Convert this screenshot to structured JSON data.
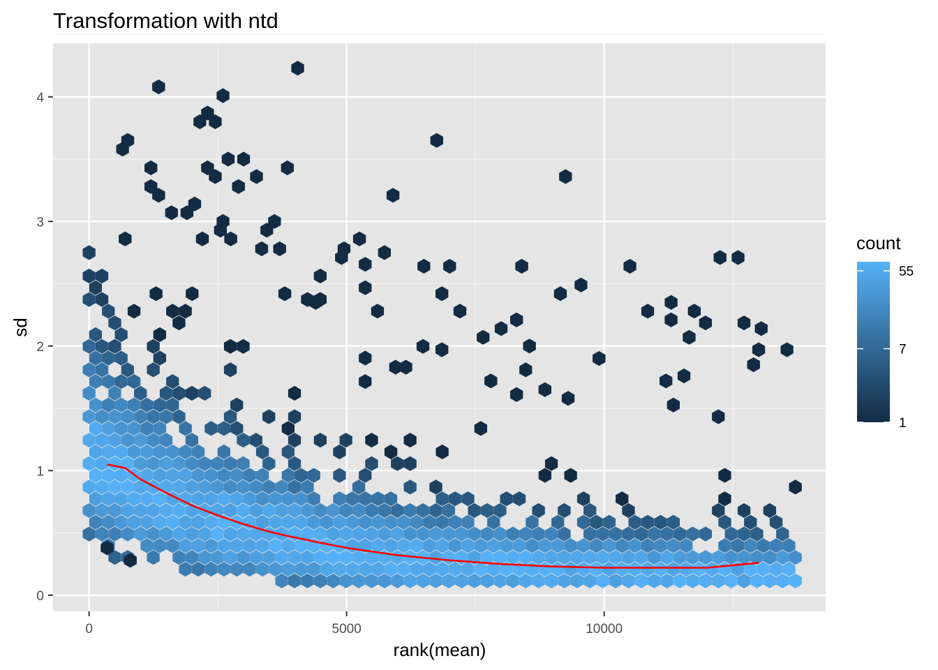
{
  "chart_data": {
    "type": "hexbin",
    "title": "Transformation with ntd",
    "xlabel": "rank(mean)",
    "ylabel": "sd",
    "xlim": [
      -700,
      14300
    ],
    "ylim": [
      -0.13,
      4.43
    ],
    "x_ticks": [
      0,
      5000,
      10000
    ],
    "y_ticks": [
      0,
      1,
      2,
      3,
      4
    ],
    "grid": true,
    "background": "#e5e5e5",
    "legend": {
      "title": "count",
      "position": "right",
      "scale": "log",
      "min": 1,
      "max": 70,
      "ticks": [
        1,
        7,
        55
      ],
      "low_color": "#132b43",
      "high_color": "#56b1f7"
    },
    "trend_color": "#ff0000",
    "trend_line": {
      "x": [
        350,
        700,
        1000,
        1500,
        2000,
        2500,
        3000,
        3500,
        3800,
        4500,
        5000,
        6000,
        7000,
        8000,
        9000,
        10000,
        11000,
        12000,
        13000
      ],
      "y": [
        1.05,
        1.02,
        0.93,
        0.82,
        0.72,
        0.64,
        0.57,
        0.51,
        0.48,
        0.42,
        0.38,
        0.32,
        0.28,
        0.25,
        0.23,
        0.22,
        0.22,
        0.22,
        0.26
      ]
    },
    "outliers": {
      "x": [
        4050,
        1350,
        2600,
        2300,
        2150,
        2450,
        750,
        6750,
        650,
        3000,
        2700,
        1200,
        2300,
        2450,
        3250,
        3850,
        9250,
        2900,
        5900,
        1200,
        1350,
        1600,
        2050,
        1900,
        2600,
        3600,
        3450,
        2550,
        2750,
        2200,
        5250,
        3350,
        3700,
        4950,
        700,
        8400,
        6500,
        7000,
        10500,
        12600,
        4900,
        9550,
        9150,
        3800,
        1300,
        2000,
        11300,
        11750,
        11300,
        6850,
        7200,
        4400,
        5600,
        7650,
        8000,
        8550,
        6850,
        8300,
        13050,
        11650,
        7800,
        9900,
        12900,
        13000,
        9300,
        8850,
        5950,
        6150,
        8300,
        11550,
        11200,
        12250,
        13550,
        350,
        800
      ],
      "y": [
        4.23,
        4.08,
        4.01,
        3.87,
        3.8,
        3.8,
        3.65,
        3.65,
        3.58,
        3.5,
        3.5,
        3.43,
        3.43,
        3.36,
        3.36,
        3.43,
        3.36,
        3.28,
        3.21,
        3.28,
        3.21,
        3.07,
        3.14,
        3.07,
        3.0,
        3.0,
        2.93,
        2.93,
        2.86,
        2.86,
        2.86,
        2.78,
        2.78,
        2.78,
        2.86,
        2.64,
        2.64,
        2.64,
        2.64,
        2.71,
        2.71,
        2.49,
        2.42,
        2.42,
        2.42,
        2.42,
        2.35,
        2.28,
        2.21,
        2.42,
        2.28,
        2.35,
        2.28,
        2.07,
        2.14,
        2.0,
        1.97,
        2.21,
        2.14,
        2.07,
        1.72,
        1.9,
        1.85,
        1.97,
        1.58,
        1.65,
        1.83,
        1.83,
        1.61,
        1.76,
        1.72,
        2.71,
        1.97,
        0.38,
        0.28
      ]
    }
  }
}
